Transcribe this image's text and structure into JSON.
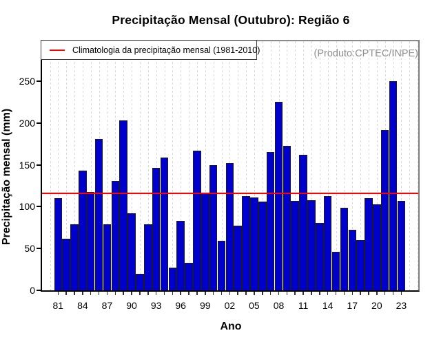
{
  "header": {
    "title": "Precipitação Mensal (Outubro): Região 6",
    "annotation": "(Produto:CPTEC/INPE)"
  },
  "legend": {
    "label": "Climatologia da precipitação mensal (1981-2010)"
  },
  "chart_data": {
    "type": "bar",
    "title": "Precipitação Mensal (Outubro): Região 6",
    "xlabel": "Ano",
    "ylabel": "Precipitação mensal (mm)",
    "ylim": [
      0,
      301
    ],
    "yticks": [
      0,
      50,
      100,
      150,
      200,
      250
    ],
    "grid": "vertical-dashed",
    "legend_position": "top-left",
    "categories": [
      "81",
      "82",
      "83",
      "84",
      "85",
      "86",
      "87",
      "88",
      "89",
      "90",
      "91",
      "92",
      "93",
      "94",
      "95",
      "96",
      "97",
      "98",
      "99",
      "00",
      "01",
      "02",
      "03",
      "04",
      "05",
      "06",
      "07",
      "08",
      "09",
      "10",
      "11",
      "12",
      "13",
      "14",
      "15",
      "16",
      "17",
      "18",
      "19",
      "20",
      "21",
      "22",
      "23"
    ],
    "values": [
      110,
      62,
      79,
      143,
      118,
      181,
      79,
      131,
      203,
      92,
      20,
      79,
      146,
      159,
      27,
      83,
      33,
      167,
      117,
      150,
      59,
      152,
      77,
      113,
      111,
      106,
      165,
      225,
      173,
      107,
      162,
      108,
      81,
      113,
      46,
      99,
      72,
      60,
      110,
      103,
      192,
      250,
      107
    ],
    "x_label_every": 3,
    "climatology_line": {
      "value": 116,
      "label": "Climatologia da precipitação mensal (1981-2010)",
      "color": "#ff0000"
    },
    "colors": {
      "bar_fill": "#0000CD",
      "bar_border": "#1c1c1c",
      "grid": "#d9d9d9",
      "annotation_text": "#8f8f8f",
      "axis": "#000000",
      "box_top_right": "#8a8a8a"
    }
  }
}
